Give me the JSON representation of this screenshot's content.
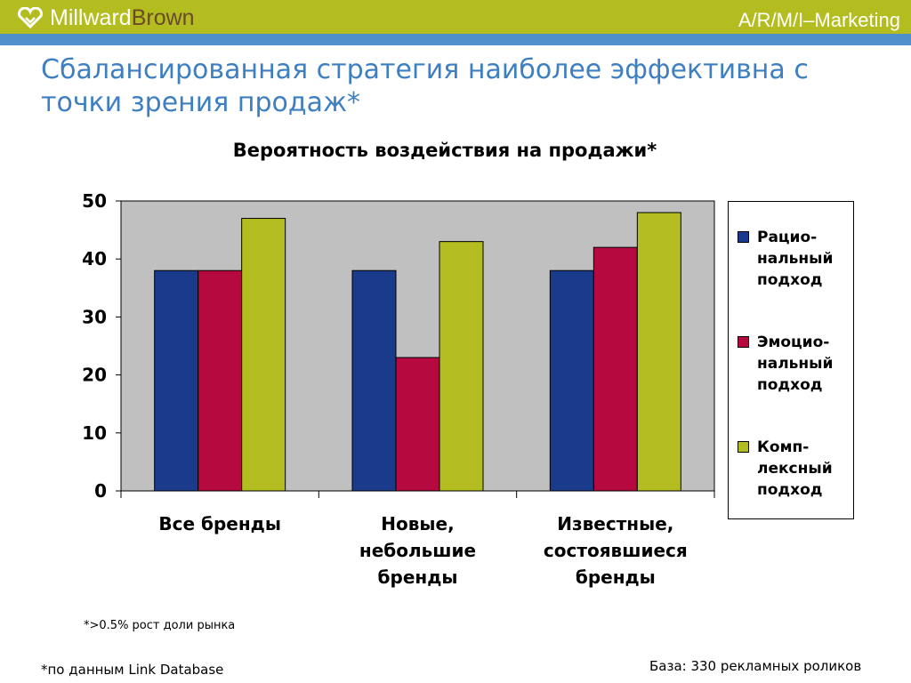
{
  "header": {
    "logo_text_a": "Millward",
    "logo_text_b": "Brown",
    "right_label": "A/R/M/I–Marketing"
  },
  "slide_title": "Сбалансированная стратегия наиболее эффективна с точки зрения продаж*",
  "chart_data": {
    "type": "bar",
    "title": "Вероятность воздействия на продажи*",
    "categories": [
      "Все бренды",
      "Новые,\nнебольшие\nбренды",
      "Известные,\nсостоявшиеся\nбренды"
    ],
    "series": [
      {
        "name": "Рацио-\nнальный\nподход",
        "color": "#1a3a8c",
        "values": [
          38,
          38,
          38
        ]
      },
      {
        "name": "Эмоцио-\nнальный\nподход",
        "color": "#b5093f",
        "values": [
          38,
          23,
          42
        ]
      },
      {
        "name": "Комп-\nлексный\nподход",
        "color": "#b3bd1f",
        "values": [
          47,
          43,
          48
        ]
      }
    ],
    "ylim": [
      0,
      50
    ],
    "yticks": [
      "0",
      "10",
      "20",
      "30",
      "40",
      "50"
    ],
    "plot_background": "#c0c0c0",
    "legend_position": "right"
  },
  "footnotes": {
    "chart_note": "*>0.5% рост доли рынка",
    "source": "*по данным Link Database",
    "base": "База:  330 рекламных роликов"
  },
  "colors": {
    "header_bar": "#b3bd1f",
    "header_stripe": "#4f8fcc",
    "title_text": "#3d7fc1"
  }
}
